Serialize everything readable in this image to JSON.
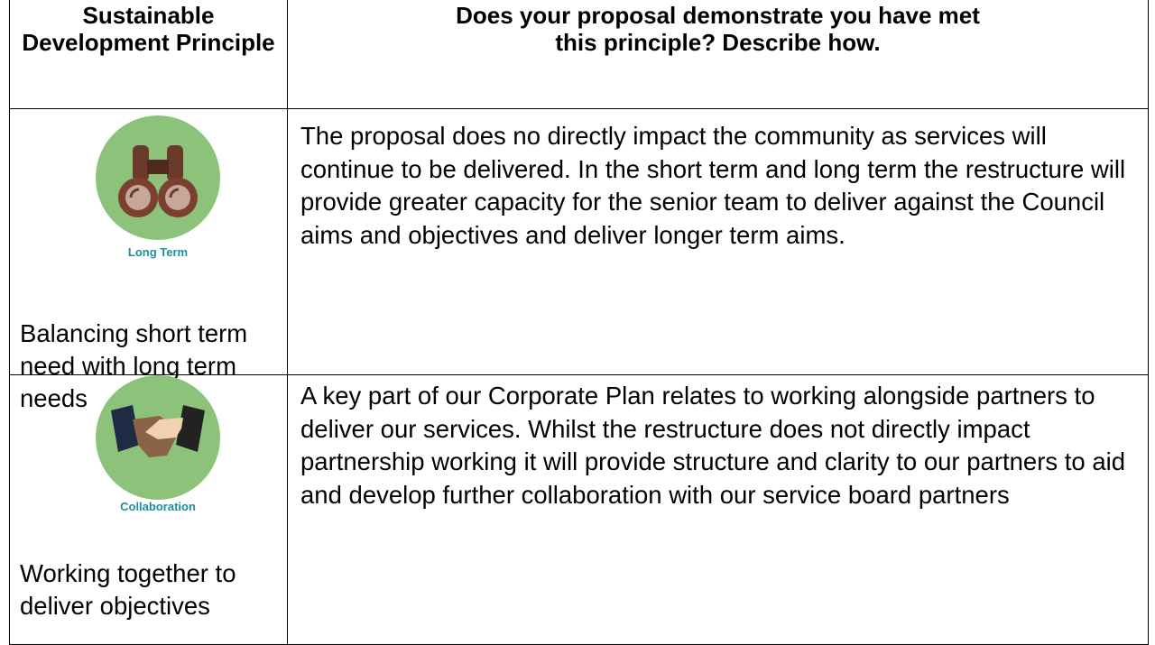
{
  "header": {
    "columns": [
      "Sustainable Development Principle",
      "Does your proposal demonstrate you have met this principle?  Describe how."
    ]
  },
  "rows": [
    {
      "icon_label": "Long Term",
      "principle": "Balancing short term need with long term needs",
      "description": "The proposal does no directly impact the community as services will continue to be delivered.  In the short term and long term the restructure will provide greater capacity for the senior team to deliver against the Council aims and objectives and deliver longer term aims."
    },
    {
      "icon_label": "Collaboration",
      "principle": "Working together to deliver objectives",
      "description": "A key part of our Corporate Plan relates to working alongside partners to deliver our services. Whilst the restructure does not directly impact partnership working it will provide structure and clarity to our partners to aid and develop further collaboration with our service board partners"
    }
  ]
}
